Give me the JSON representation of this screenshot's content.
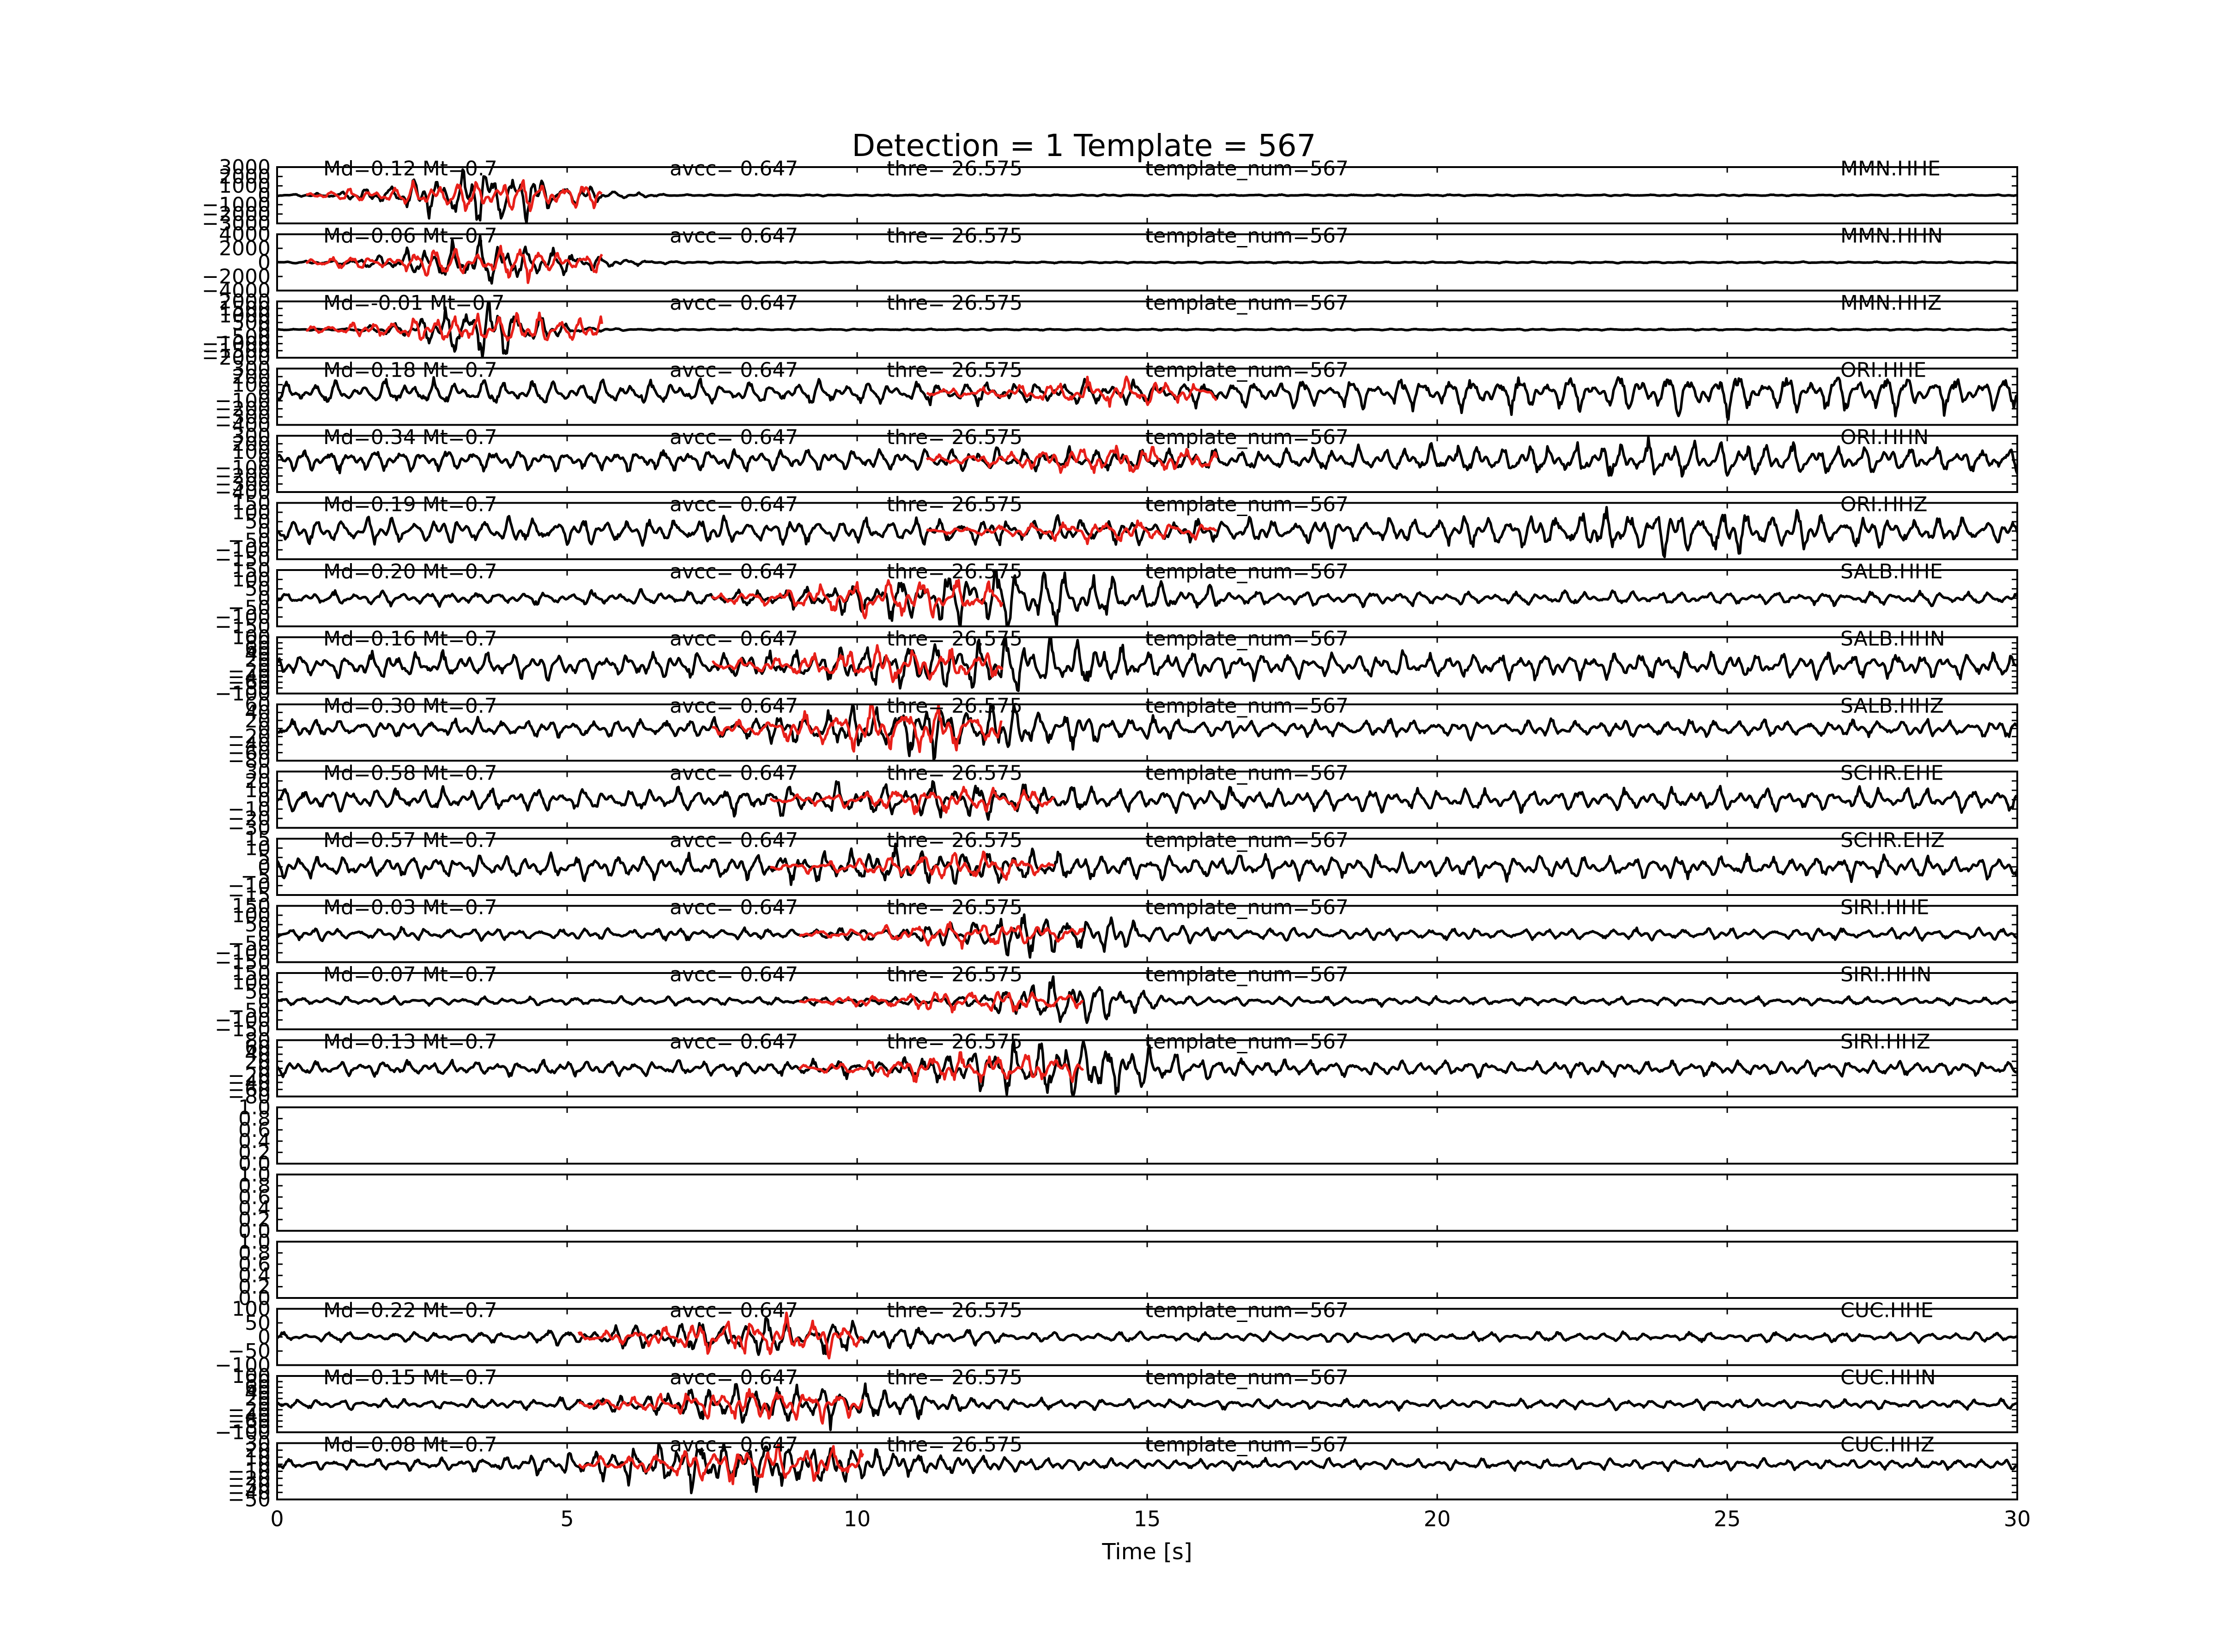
{
  "title": "Detection = 1 Template = 567",
  "colors": {
    "trace": "#000000",
    "template": "#e8201a"
  },
  "xaxis": {
    "label": "Time [s]",
    "ticks": [
      0,
      5,
      10,
      15,
      20,
      25,
      30
    ],
    "range": [
      0,
      30
    ]
  },
  "chart_data": {
    "type": "line",
    "title": "Detection = 1 Template = 567",
    "xlabel": "Time [s]",
    "xlim": [
      0,
      30
    ],
    "grid": false,
    "panels": [
      {
        "station": "MMN.HHE",
        "md": "Md=0.12 Mt=0.7",
        "avcc": "avcc= 0.647",
        "thre": "thre= 26.575",
        "tnum": "template_num=567",
        "ylim": [
          -3000,
          3000
        ],
        "yticks": [
          3000,
          2000,
          1000,
          0,
          -1000,
          -2000,
          -3000
        ],
        "yticklabels": [
          "3000",
          "2000",
          "1000",
          "0",
          "−1000",
          "−2000",
          "−3000"
        ],
        "trace": {
          "noise": 60,
          "events": [
            [
              3.5,
              1.6,
              2600
            ]
          ]
        },
        "template": {
          "start": 0.5,
          "end": 5.6,
          "amp": 1200
        }
      },
      {
        "station": "MMN.HHN",
        "md": "Md=0.06 Mt=0.7",
        "avcc": "avcc= 0.647",
        "thre": "thre= 26.575",
        "tnum": "template_num=567",
        "ylim": [
          -4000,
          4000
        ],
        "yticks": [
          4000,
          2000,
          0,
          -2000,
          -4000
        ],
        "yticklabels": [
          "4000",
          "2000",
          "0",
          "−2000",
          "−4000"
        ],
        "trace": {
          "noise": 80,
          "events": [
            [
              3.6,
              1.7,
              2600
            ]
          ]
        },
        "template": {
          "start": 0.5,
          "end": 5.6,
          "amp": 1600
        }
      },
      {
        "station": "MMN.HHZ",
        "md": "Md=-0.01 Mt=0.7",
        "avcc": "avcc= 0.647",
        "thre": "thre= 26.575",
        "tnum": "template_num=567",
        "ylim": [
          -2000,
          2000
        ],
        "yticks": [
          2000,
          1500,
          1000,
          500,
          0,
          -500,
          -1000,
          -1500,
          -2000
        ],
        "yticklabels": [
          "2000",
          "1500",
          "1000",
          "500",
          "0",
          "−500",
          "−1000",
          "−1500",
          "−2000"
        ],
        "trace": {
          "noise": 40,
          "events": [
            [
              3.5,
              1.2,
              1800
            ]
          ]
        },
        "template": {
          "start": 0.5,
          "end": 5.6,
          "amp": 800
        }
      },
      {
        "station": "ORI.HHE",
        "md": "Md=0.18 Mt=0.7",
        "avcc": "avcc= 0.647",
        "thre": "thre= 26.575",
        "tnum": "template_num=567",
        "ylim": [
          -400,
          300
        ],
        "yticks": [
          300,
          200,
          100,
          0,
          -100,
          -200,
          -300,
          -400
        ],
        "yticklabels": [
          "300",
          "200",
          "100",
          "0",
          "−100",
          "−200",
          "−300",
          "−400"
        ],
        "trace": {
          "noise": 120,
          "events": [
            [
              25,
              6,
              90
            ]
          ]
        },
        "template": {
          "start": 11.2,
          "end": 16.2,
          "amp": 110
        }
      },
      {
        "station": "ORI.HHN",
        "md": "Md=0.34 Mt=0.7",
        "avcc": "avcc= 0.647",
        "thre": "thre= 26.575",
        "tnum": "template_num=567",
        "ylim": [
          -400,
          300
        ],
        "yticks": [
          300,
          200,
          100,
          0,
          -100,
          -200,
          -300,
          -400
        ],
        "yticklabels": [
          "300",
          "200",
          "100",
          "0",
          "−100",
          "−200",
          "−300",
          "−400"
        ],
        "trace": {
          "noise": 110,
          "events": [
            [
              24,
              4,
              80
            ]
          ]
        },
        "template": {
          "start": 11.2,
          "end": 16.2,
          "amp": 130
        }
      },
      {
        "station": "ORI.HHZ",
        "md": "Md=0.19 Mt=0.7",
        "avcc": "avcc= 0.647",
        "thre": "thre= 26.575",
        "tnum": "template_num=567",
        "ylim": [
          -150,
          150
        ],
        "yticks": [
          150,
          100,
          50,
          0,
          -50,
          -100,
          -150
        ],
        "yticklabels": [
          "150",
          "100",
          "50",
          "0",
          "−50",
          "−100",
          "−150"
        ],
        "trace": {
          "noise": 55,
          "events": [
            [
              24,
              3,
              45
            ]
          ]
        },
        "template": {
          "start": 11.2,
          "end": 16.2,
          "amp": 40
        }
      },
      {
        "station": "SALB.HHE",
        "md": "Md=0.20 Mt=0.7",
        "avcc": "avcc= 0.647",
        "thre": "thre= 26.575",
        "tnum": "template_num=567",
        "ylim": [
          -150,
          150
        ],
        "yticks": [
          150,
          100,
          50,
          0,
          -50,
          -100,
          -150
        ],
        "yticklabels": [
          "150",
          "100",
          "50",
          "0",
          "−50",
          "−100",
          "−150"
        ],
        "trace": {
          "noise": 30,
          "events": [
            [
              12.5,
              2.5,
              110
            ]
          ]
        },
        "template": {
          "start": 7.5,
          "end": 12.5,
          "amp": 70
        }
      },
      {
        "station": "SALB.HHN",
        "md": "Md=0.16 Mt=0.7",
        "avcc": "avcc= 0.647",
        "thre": "thre= 26.575",
        "tnum": "template_num=567",
        "ylim": [
          -100,
          100
        ],
        "yticks": [
          100,
          80,
          60,
          40,
          20,
          0,
          -20,
          -40,
          -60,
          -80,
          -100
        ],
        "yticklabels": [
          "100",
          "80",
          "60",
          "40",
          "20",
          "0",
          "−20",
          "−40",
          "−60",
          "−80",
          "−100"
        ],
        "trace": {
          "noise": 38,
          "events": [
            [
              12.3,
              2.2,
              50
            ]
          ]
        },
        "template": {
          "start": 7.5,
          "end": 12.5,
          "amp": 45
        }
      },
      {
        "station": "SALB.HHZ",
        "md": "Md=0.30 Mt=0.7",
        "avcc": "avcc= 0.647",
        "thre": "thre= 26.575",
        "tnum": "template_num=567",
        "ylim": [
          -80,
          60
        ],
        "yticks": [
          60,
          40,
          20,
          0,
          -20,
          -40,
          -60,
          -80
        ],
        "yticklabels": [
          "60",
          "40",
          "20",
          "0",
          "−20",
          "−40",
          "−60",
          "−80"
        ],
        "trace": {
          "noise": 18,
          "events": [
            [
              11.5,
              2.5,
              40
            ]
          ]
        },
        "template": {
          "start": 7.5,
          "end": 12.5,
          "amp": 40
        }
      },
      {
        "station": "SCHR.EHE",
        "md": "Md=0.58 Mt=0.7",
        "avcc": "avcc= 0.647",
        "thre": "thre= 26.575",
        "tnum": "template_num=567",
        "ylim": [
          -30,
          30
        ],
        "yticks": [
          30,
          20,
          10,
          0,
          -10,
          -20,
          -30
        ],
        "yticklabels": [
          "30",
          "20",
          "10",
          "0",
          "−10",
          "−20",
          "−30"
        ],
        "trace": {
          "noise": 10,
          "events": [
            [
              11,
              2.5,
              6
            ]
          ]
        },
        "template": {
          "start": 8.5,
          "end": 13.4,
          "amp": 10
        }
      },
      {
        "station": "SCHR.EHZ",
        "md": "Md=0.57 Mt=0.7",
        "avcc": "avcc= 0.647",
        "thre": "thre= 26.575",
        "tnum": "template_num=567",
        "ylim": [
          -15,
          15
        ],
        "yticks": [
          15,
          10,
          5,
          0,
          -5,
          -10,
          -15
        ],
        "yticklabels": [
          "15",
          "10",
          "5",
          "0",
          "−5",
          "−10",
          "−15"
        ],
        "trace": {
          "noise": 5,
          "events": [
            [
              11,
              2.5,
              3
            ]
          ]
        },
        "template": {
          "start": 8.5,
          "end": 13.4,
          "amp": 5
        }
      },
      {
        "station": "SIRI.HHE",
        "md": "Md=0.03 Mt=0.7",
        "avcc": "avcc= 0.647",
        "thre": "thre= 26.575",
        "tnum": "template_num=567",
        "ylim": [
          -150,
          150
        ],
        "yticks": [
          150,
          100,
          50,
          0,
          -50,
          -100,
          -150
        ],
        "yticklabels": [
          "150",
          "100",
          "50",
          "0",
          "−50",
          "−100",
          "−150"
        ],
        "trace": {
          "noise": 25,
          "events": [
            [
              13.3,
              1.8,
              70
            ]
          ]
        },
        "template": {
          "start": 9.0,
          "end": 13.9,
          "amp": 45
        }
      },
      {
        "station": "SIRI.HHN",
        "md": "Md=0.07 Mt=0.7",
        "avcc": "avcc= 0.647",
        "thre": "thre= 26.575",
        "tnum": "template_num=567",
        "ylim": [
          -150,
          150
        ],
        "yticks": [
          150,
          100,
          50,
          0,
          -50,
          -100,
          -150
        ],
        "yticklabels": [
          "150",
          "100",
          "50",
          "0",
          "−50",
          "−100",
          "−150"
        ],
        "trace": {
          "noise": 18,
          "events": [
            [
              13.6,
              1.2,
              110
            ]
          ]
        },
        "template": {
          "start": 9.0,
          "end": 13.9,
          "amp": 40
        }
      },
      {
        "station": "SIRI.HHZ",
        "md": "Md=0.13 Mt=0.7",
        "avcc": "avcc= 0.647",
        "thre": "thre= 26.575",
        "tnum": "template_num=567",
        "ylim": [
          -80,
          80
        ],
        "yticks": [
          80,
          60,
          40,
          20,
          0,
          -20,
          -40,
          -60,
          -80
        ],
        "yticklabels": [
          "80",
          "60",
          "40",
          "20",
          "0",
          "−20",
          "−40",
          "−60",
          "−80"
        ],
        "trace": {
          "noise": 18,
          "events": [
            [
              13.5,
              2.0,
              55
            ]
          ]
        },
        "template": {
          "start": 9.0,
          "end": 13.9,
          "amp": 30
        }
      },
      {
        "station": "",
        "md": "",
        "avcc": "",
        "thre": "",
        "tnum": "",
        "ylim": [
          0,
          1
        ],
        "yticks": [
          1.0,
          0.8,
          0.6,
          0.4,
          0.2,
          0.0
        ],
        "yticklabels": [
          "1.0",
          "0.8",
          "0.6",
          "0.4",
          "0.2",
          "0.0"
        ],
        "trace": null,
        "template": null
      },
      {
        "station": "",
        "md": "",
        "avcc": "",
        "thre": "",
        "tnum": "",
        "ylim": [
          0,
          1
        ],
        "yticks": [
          1.0,
          0.8,
          0.6,
          0.4,
          0.2,
          0.0
        ],
        "yticklabels": [
          "1.0",
          "0.8",
          "0.6",
          "0.4",
          "0.2",
          "0.0"
        ],
        "trace": null,
        "template": null
      },
      {
        "station": "",
        "md": "",
        "avcc": "",
        "thre": "",
        "tnum": "",
        "ylim": [
          0,
          1
        ],
        "yticks": [
          1.0,
          0.8,
          0.6,
          0.4,
          0.2,
          0.0
        ],
        "yticklabels": [
          "1.0",
          "0.8",
          "0.6",
          "0.4",
          "0.2",
          "0.0"
        ],
        "trace": null,
        "template": null
      },
      {
        "station": "CUC.HHE",
        "md": "Md=0.22 Mt=0.7",
        "avcc": "avcc= 0.647",
        "thre": "thre= 26.575",
        "tnum": "template_num=567",
        "ylim": [
          -100,
          100
        ],
        "yticks": [
          100,
          50,
          0,
          -50,
          -100
        ],
        "yticklabels": [
          "100",
          "50",
          "0",
          "−50",
          "−100"
        ],
        "trace": {
          "noise": 14,
          "events": [
            [
              8.5,
              2.8,
              40
            ]
          ]
        },
        "template": {
          "start": 5.2,
          "end": 10.1,
          "amp": 45
        }
      },
      {
        "station": "CUC.HHN",
        "md": "Md=0.15 Mt=0.7",
        "avcc": "avcc= 0.647",
        "thre": "thre= 26.575",
        "tnum": "template_num=567",
        "ylim": [
          -100,
          100
        ],
        "yticks": [
          100,
          80,
          60,
          40,
          20,
          0,
          -20,
          -40,
          -60,
          -80,
          -100
        ],
        "yticklabels": [
          "100",
          "80",
          "60",
          "40",
          "20",
          "0",
          "−20",
          "−40",
          "−60",
          "−80",
          "−100"
        ],
        "trace": {
          "noise": 14,
          "events": [
            [
              8.8,
              2.5,
              50
            ]
          ]
        },
        "template": {
          "start": 5.2,
          "end": 10.1,
          "amp": 40
        }
      },
      {
        "station": "CUC.HHZ",
        "md": "Md=0.08 Mt=0.7",
        "avcc": "avcc= 0.647",
        "thre": "thre= 26.575",
        "tnum": "template_num=567",
        "ylim": [
          -50,
          30
        ],
        "yticks": [
          30,
          20,
          10,
          0,
          -10,
          -20,
          -30,
          -40,
          -50
        ],
        "yticklabels": [
          "30",
          "20",
          "10",
          "0",
          "−10",
          "−20",
          "−30",
          "−40",
          "−50"
        ],
        "trace": {
          "noise": 6,
          "events": [
            [
              8.0,
              3.0,
              25
            ]
          ]
        },
        "template": {
          "start": 5.2,
          "end": 10.1,
          "amp": 20
        }
      }
    ]
  }
}
